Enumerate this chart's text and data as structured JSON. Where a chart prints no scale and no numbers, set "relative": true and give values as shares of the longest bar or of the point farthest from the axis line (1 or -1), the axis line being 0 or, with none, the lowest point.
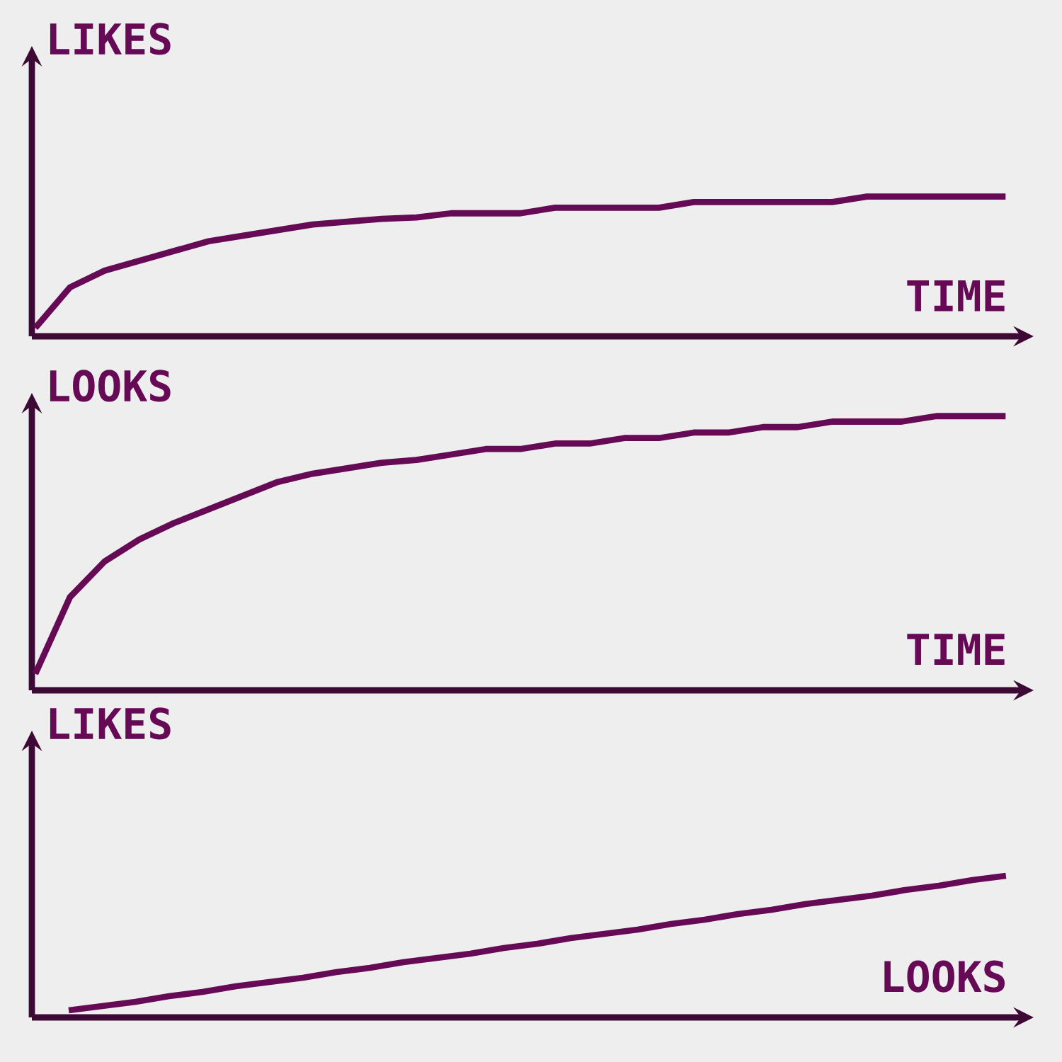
{
  "chart_data": [
    {
      "type": "line",
      "relative": true,
      "xlabel": "TIME",
      "ylabel": "LIKES",
      "categories": [
        null,
        null,
        null,
        null,
        null,
        null,
        null,
        null,
        null,
        null,
        null,
        null,
        null,
        null,
        null,
        null,
        null,
        null,
        null,
        null,
        null,
        null,
        null,
        null,
        null,
        null,
        null,
        null,
        null
      ],
      "series": [
        {
          "color": "#660a55",
          "values": [
            0.06,
            0.35,
            0.47,
            0.54,
            0.61,
            0.68,
            0.72,
            0.76,
            0.8,
            0.82,
            0.84,
            0.85,
            0.88,
            0.88,
            0.88,
            0.92,
            0.92,
            0.92,
            0.92,
            0.96,
            0.96,
            0.96,
            0.96,
            0.96,
            1,
            1,
            1,
            1,
            1
          ]
        }
      ]
    },
    {
      "type": "line",
      "relative": true,
      "xlabel": "TIME",
      "ylabel": "LOOKS",
      "categories": [
        null,
        null,
        null,
        null,
        null,
        null,
        null,
        null,
        null,
        null,
        null,
        null,
        null,
        null,
        null,
        null,
        null,
        null,
        null,
        null,
        null,
        null,
        null,
        null,
        null,
        null,
        null,
        null,
        null
      ],
      "series": [
        {
          "color": "#660a55",
          "values": [
            0.06,
            0.34,
            0.47,
            0.55,
            0.61,
            0.66,
            0.71,
            0.76,
            0.79,
            0.81,
            0.83,
            0.84,
            0.86,
            0.88,
            0.88,
            0.9,
            0.9,
            0.92,
            0.92,
            0.94,
            0.94,
            0.96,
            0.96,
            0.98,
            0.98,
            0.98,
            1,
            1,
            1
          ]
        }
      ]
    },
    {
      "type": "line",
      "relative": true,
      "xlabel": "LOOKS",
      "ylabel": "LIKES",
      "categories": [
        null,
        null,
        null,
        null,
        null,
        null,
        null,
        null,
        null,
        null,
        null,
        null,
        null,
        null,
        null,
        null,
        null,
        null,
        null,
        null,
        null,
        null,
        null,
        null,
        null,
        null,
        null,
        null,
        null
      ],
      "series": [
        {
          "color": "#660a55",
          "values": [
            0.05,
            0.08,
            0.11,
            0.15,
            0.18,
            0.22,
            0.25,
            0.28,
            0.32,
            0.35,
            0.39,
            0.42,
            0.45,
            0.49,
            0.52,
            0.56,
            0.59,
            0.62,
            0.66,
            0.69,
            0.73,
            0.76,
            0.8,
            0.83,
            0.86,
            0.9,
            0.93,
            0.97,
            1.0
          ]
        }
      ]
    }
  ]
}
